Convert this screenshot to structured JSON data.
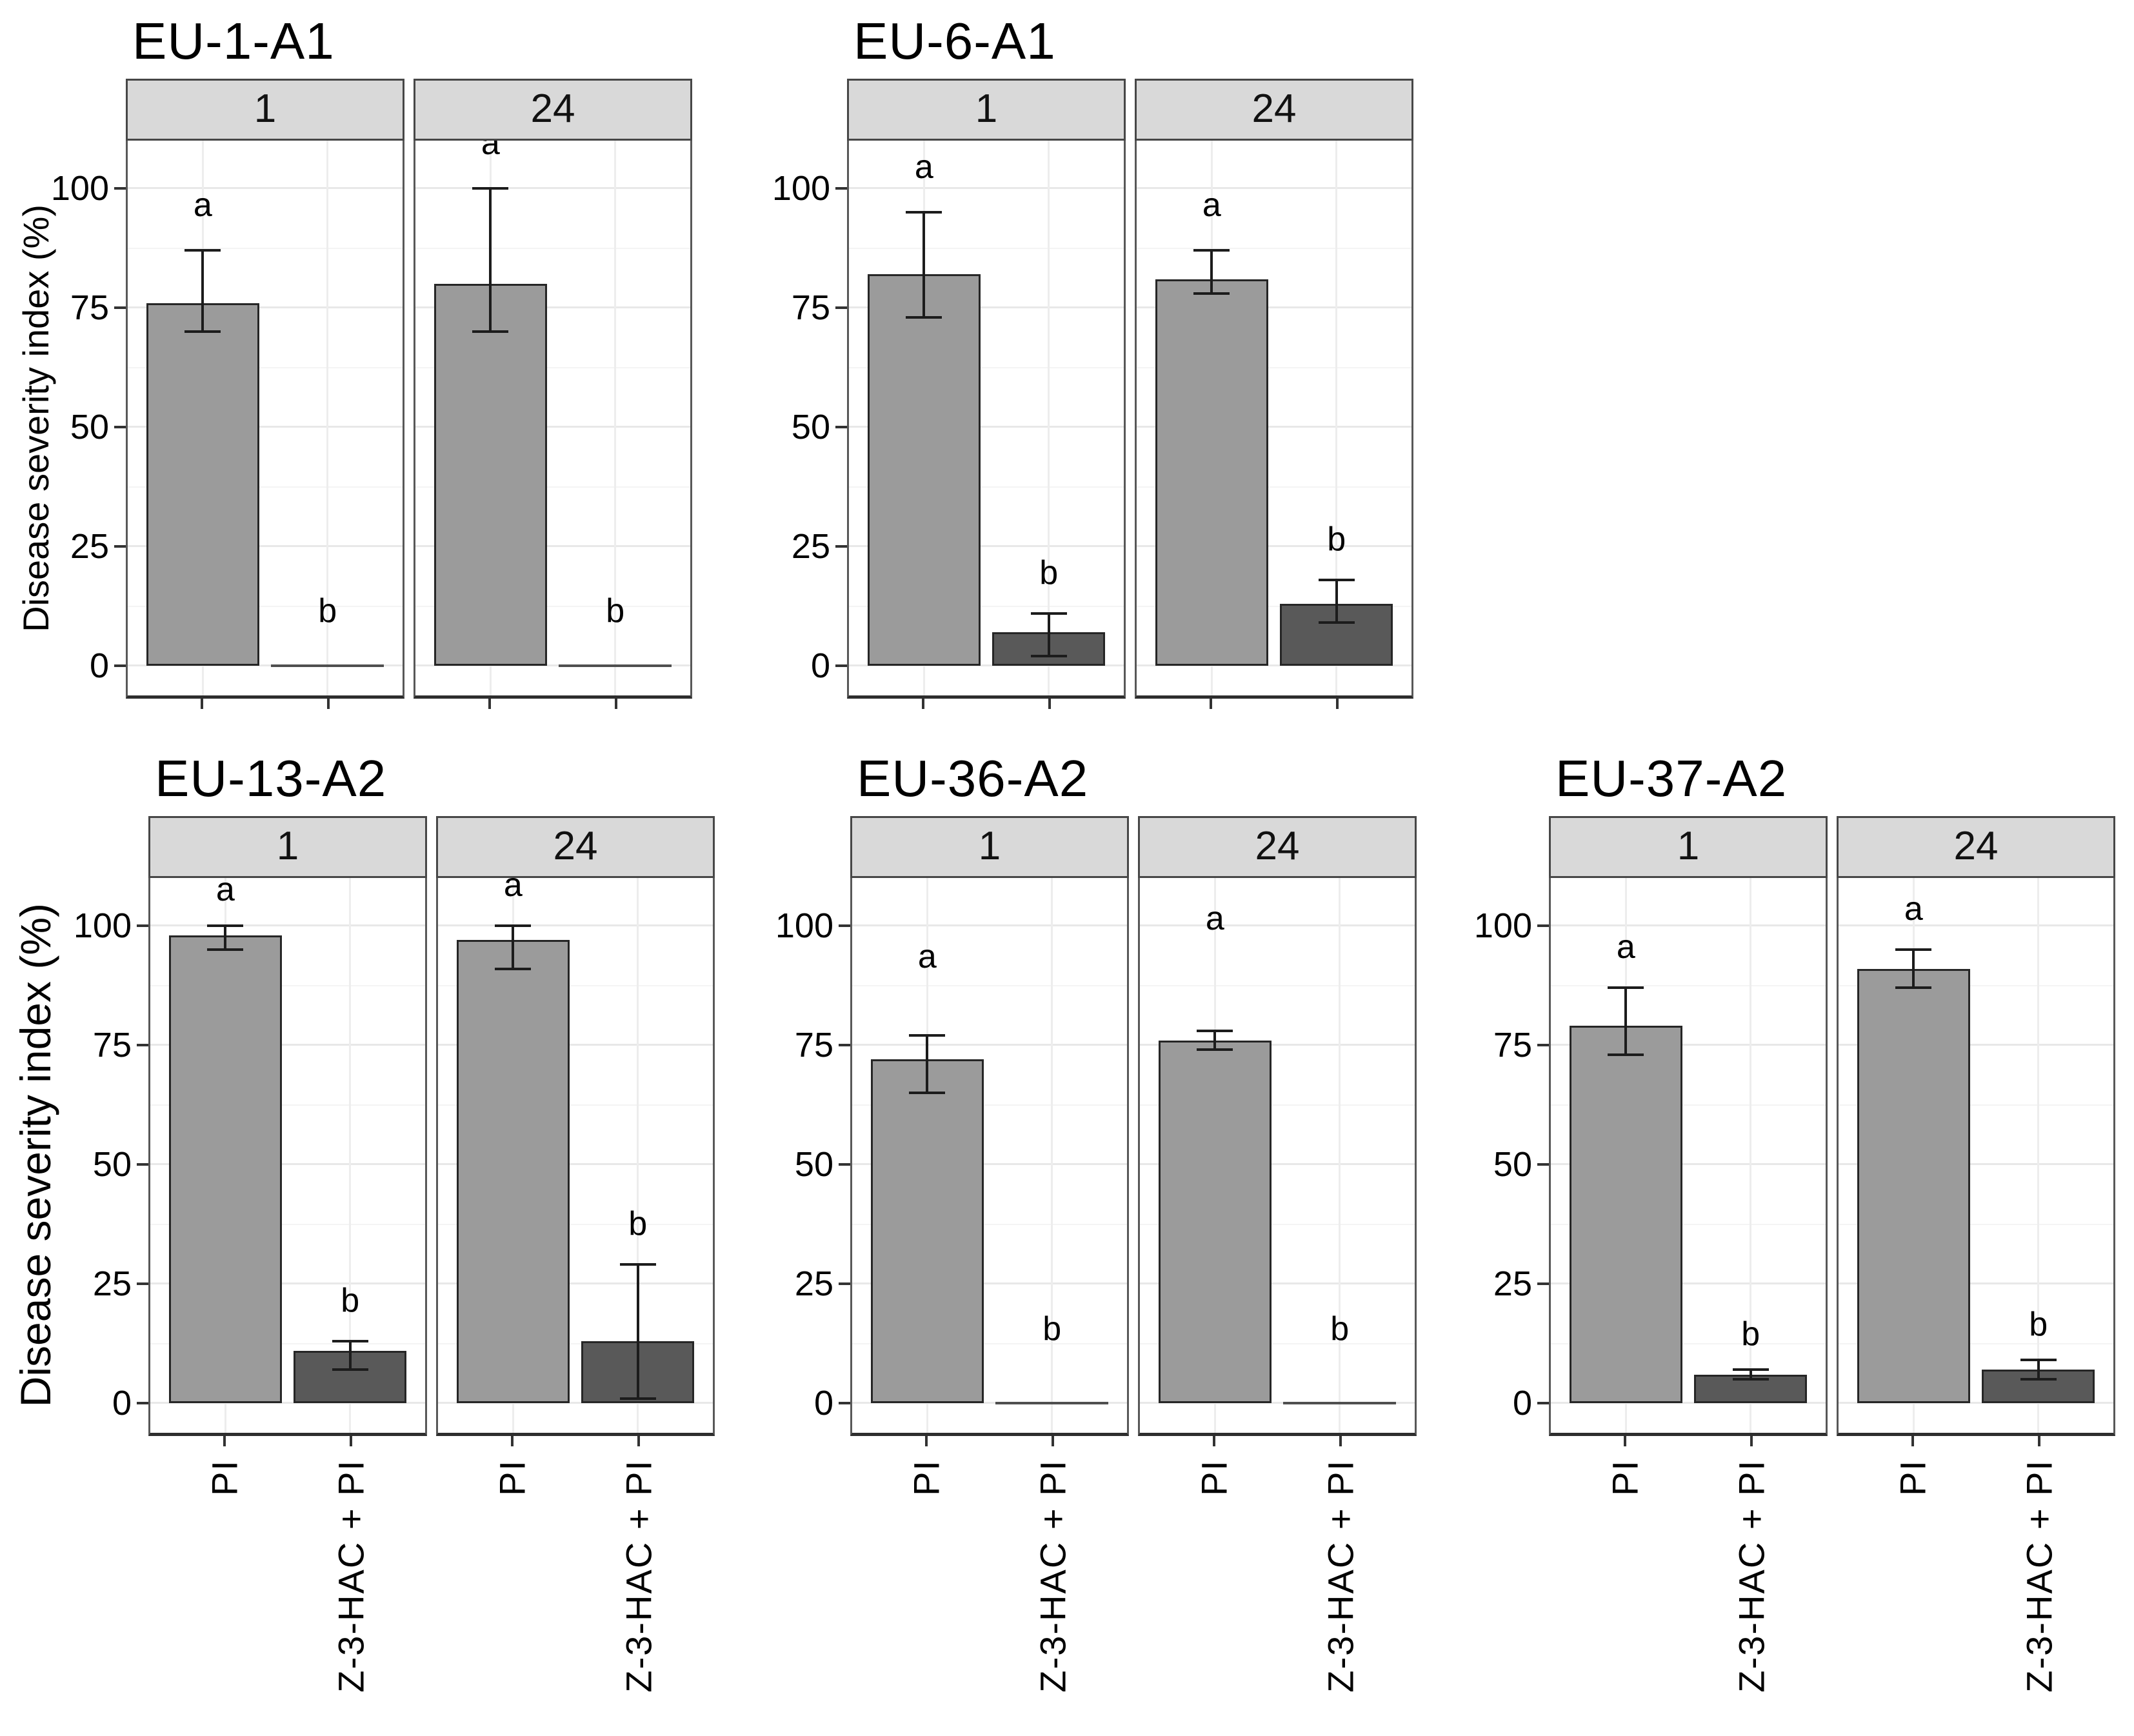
{
  "figure": {
    "ylabel": "Disease severity index (%)",
    "yticks": [
      0,
      25,
      50,
      75,
      100
    ],
    "ylim": [
      0,
      100
    ],
    "x_categories": [
      "PI",
      "Z-3-HAC + PI"
    ],
    "facet_labels": [
      "1",
      "24"
    ],
    "colors": {
      "bar_light": "#9b9b9b",
      "bar_dark": "#595959",
      "strip_background": "#d9d9d9",
      "panel_border": "#585858",
      "grid_major": "#e8e8e8",
      "grid_minor": "#f4f4f4",
      "error_bar": "#1c1c1c"
    },
    "grid": "on",
    "legend": "none"
  },
  "chart_data": [
    {
      "type": "bar",
      "title": "EU-1-A1",
      "ylabel": "Disease severity index (%)",
      "ylim": [
        0,
        100
      ],
      "facets": [
        {
          "label": "1",
          "bars": [
            {
              "treatment": "PI",
              "value": 76,
              "err_low": 70,
              "err_high": 87,
              "sig": "a",
              "sig_y": 93
            },
            {
              "treatment": "Z-3-HAC + PI",
              "value": 0,
              "err_low": null,
              "err_high": null,
              "sig": "b",
              "sig_y": 8
            }
          ]
        },
        {
          "label": "24",
          "bars": [
            {
              "treatment": "PI",
              "value": 80,
              "err_low": 70,
              "err_high": 100,
              "sig": "a",
              "sig_y": 106
            },
            {
              "treatment": "Z-3-HAC + PI",
              "value": 0,
              "err_low": null,
              "err_high": null,
              "sig": "b",
              "sig_y": 8
            }
          ]
        }
      ]
    },
    {
      "type": "bar",
      "title": "EU-6-A1",
      "ylabel": "Disease severity index (%)",
      "ylim": [
        0,
        100
      ],
      "facets": [
        {
          "label": "1",
          "bars": [
            {
              "treatment": "PI",
              "value": 82,
              "err_low": 73,
              "err_high": 95,
              "sig": "a",
              "sig_y": 101
            },
            {
              "treatment": "Z-3-HAC + PI",
              "value": 7,
              "err_low": 2,
              "err_high": 11,
              "sig": "b",
              "sig_y": 16
            }
          ]
        },
        {
          "label": "24",
          "bars": [
            {
              "treatment": "PI",
              "value": 81,
              "err_low": 78,
              "err_high": 87,
              "sig": "a",
              "sig_y": 93
            },
            {
              "treatment": "Z-3-HAC + PI",
              "value": 13,
              "err_low": 9,
              "err_high": 18,
              "sig": "b",
              "sig_y": 23
            }
          ]
        }
      ]
    },
    {
      "type": "bar",
      "title": "EU-13-A2",
      "ylabel": "Disease severity index (%)",
      "ylim": [
        0,
        100
      ],
      "facets": [
        {
          "label": "1",
          "bars": [
            {
              "treatment": "PI",
              "value": 98,
              "err_low": 95,
              "err_high": 100,
              "sig": "a",
              "sig_y": 104
            },
            {
              "treatment": "Z-3-HAC + PI",
              "value": 11,
              "err_low": 7,
              "err_high": 13,
              "sig": "b",
              "sig_y": 18
            }
          ]
        },
        {
          "label": "24",
          "bars": [
            {
              "treatment": "PI",
              "value": 97,
              "err_low": 91,
              "err_high": 100,
              "sig": "a",
              "sig_y": 105
            },
            {
              "treatment": "Z-3-HAC + PI",
              "value": 13,
              "err_low": 1,
              "err_high": 29,
              "sig": "b",
              "sig_y": 34
            }
          ]
        }
      ]
    },
    {
      "type": "bar",
      "title": "EU-36-A2",
      "ylabel": "Disease severity index (%)",
      "ylim": [
        0,
        100
      ],
      "facets": [
        {
          "label": "1",
          "bars": [
            {
              "treatment": "PI",
              "value": 72,
              "err_low": 65,
              "err_high": 77,
              "sig": "a",
              "sig_y": 90
            },
            {
              "treatment": "Z-3-HAC + PI",
              "value": 0,
              "err_low": null,
              "err_high": null,
              "sig": "b",
              "sig_y": 12
            }
          ]
        },
        {
          "label": "24",
          "bars": [
            {
              "treatment": "PI",
              "value": 76,
              "err_low": 74,
              "err_high": 78,
              "sig": "a",
              "sig_y": 98
            },
            {
              "treatment": "Z-3-HAC + PI",
              "value": 0,
              "err_low": null,
              "err_high": null,
              "sig": "b",
              "sig_y": 12
            }
          ]
        }
      ]
    },
    {
      "type": "bar",
      "title": "EU-37-A2",
      "ylabel": "Disease severity index (%)",
      "ylim": [
        0,
        100
      ],
      "facets": [
        {
          "label": "1",
          "bars": [
            {
              "treatment": "PI",
              "value": 79,
              "err_low": 73,
              "err_high": 87,
              "sig": "a",
              "sig_y": 92
            },
            {
              "treatment": "Z-3-HAC + PI",
              "value": 6,
              "err_low": 5,
              "err_high": 7,
              "sig": "b",
              "sig_y": 11
            }
          ]
        },
        {
          "label": "24",
          "bars": [
            {
              "treatment": "PI",
              "value": 91,
              "err_low": 87,
              "err_high": 95,
              "sig": "a",
              "sig_y": 100
            },
            {
              "treatment": "Z-3-HAC + PI",
              "value": 7,
              "err_low": 5,
              "err_high": 9,
              "sig": "b",
              "sig_y": 13
            }
          ]
        }
      ]
    }
  ]
}
